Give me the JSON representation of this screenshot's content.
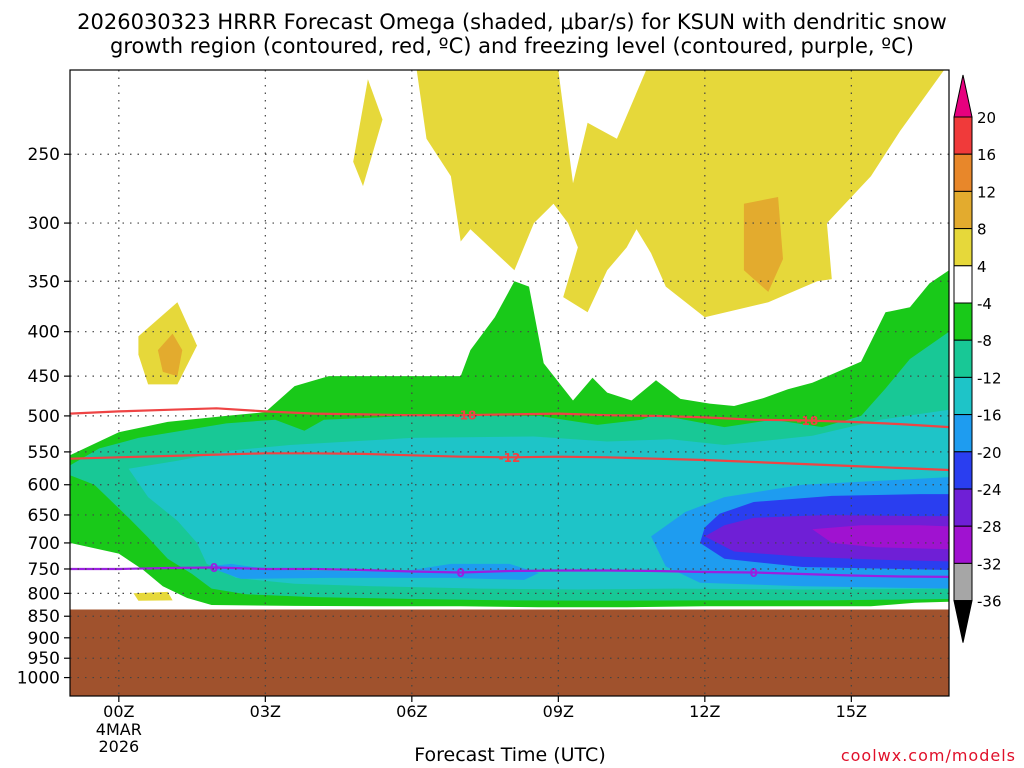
{
  "title_line1": "2026030323 HRRR Forecast Omega (shaded, μbar/s) for KSUN with dendritic snow",
  "title_line2": "growth region (contoured, red, ºC) and freezing level (contoured, purple, ºC)",
  "x_axis_title": "Forecast Time (UTC)",
  "credit": "coolwx.com/models",
  "chart_data": {
    "type": "heatmap",
    "x_ticks": [
      {
        "hour": 0,
        "label": "00Z"
      },
      {
        "hour": 3,
        "label": "03Z"
      },
      {
        "hour": 6,
        "label": "06Z"
      },
      {
        "hour": 9,
        "label": "09Z"
      },
      {
        "hour": 12,
        "label": "12Z"
      },
      {
        "hour": 15,
        "label": "15Z"
      }
    ],
    "x_date_lines": [
      "4MAR",
      "2026"
    ],
    "xlim_hours": [
      -1,
      17
    ],
    "y_pressure_range_mb": [
      1050,
      200
    ],
    "y_ticks_mb": [
      250,
      300,
      350,
      400,
      450,
      500,
      550,
      600,
      650,
      700,
      750,
      800,
      850,
      900,
      950,
      1000
    ],
    "grid": true,
    "surface_pressure_mb": 835,
    "colorbar": {
      "levels": [
        20,
        16,
        12,
        8,
        4,
        -4,
        -8,
        -12,
        -16,
        -20,
        -24,
        -28,
        -32,
        -36
      ],
      "bins": [
        {
          "lo": 20,
          "hi": null,
          "color": "#e6007e"
        },
        {
          "lo": 16,
          "hi": 20,
          "color": "#f03a3a"
        },
        {
          "lo": 12,
          "hi": 16,
          "color": "#e8872a"
        },
        {
          "lo": 8,
          "hi": 12,
          "color": "#e3ab2e"
        },
        {
          "lo": 4,
          "hi": 8,
          "color": "#e6d83a"
        },
        {
          "lo": -4,
          "hi": 4,
          "color": "#ffffff"
        },
        {
          "lo": -8,
          "hi": -4,
          "color": "#19c919"
        },
        {
          "lo": -12,
          "hi": -8,
          "color": "#18c896"
        },
        {
          "lo": -16,
          "hi": -12,
          "color": "#1ec4c8"
        },
        {
          "lo": -20,
          "hi": -16,
          "color": "#1e9cf0"
        },
        {
          "lo": -24,
          "hi": -20,
          "color": "#2a3ef0"
        },
        {
          "lo": -28,
          "hi": -24,
          "color": "#6f1fd6"
        },
        {
          "lo": -32,
          "hi": -28,
          "color": "#a012d0"
        },
        {
          "lo": -36,
          "hi": -32,
          "color": "#a6a6a6"
        },
        {
          "lo": null,
          "hi": -36,
          "color": "#000000"
        }
      ]
    },
    "omega_regions": [
      {
        "value": 6,
        "points": [
          [
            6.1,
            200
          ],
          [
            9.0,
            200
          ],
          [
            9.3,
            270
          ],
          [
            9.6,
            230
          ],
          [
            10.2,
            240
          ],
          [
            10.8,
            200
          ],
          [
            16.9,
            200
          ],
          [
            16.0,
            235
          ],
          [
            15.4,
            265
          ],
          [
            14.5,
            300
          ],
          [
            14.6,
            348
          ],
          [
            14.3,
            350
          ],
          [
            13.3,
            370
          ],
          [
            12.0,
            385
          ],
          [
            11.2,
            355
          ],
          [
            10.9,
            325
          ],
          [
            10.6,
            305
          ],
          [
            10.4,
            320
          ],
          [
            10.0,
            340
          ],
          [
            9.6,
            380
          ],
          [
            9.1,
            365
          ],
          [
            9.4,
            320
          ],
          [
            9.2,
            300
          ],
          [
            8.9,
            285
          ],
          [
            8.5,
            300
          ],
          [
            8.1,
            340
          ],
          [
            7.2,
            305
          ],
          [
            7.0,
            315
          ],
          [
            6.8,
            265
          ],
          [
            6.3,
            240
          ]
        ]
      },
      {
        "value": 5,
        "points": [
          [
            5.1,
            205
          ],
          [
            5.4,
            228
          ],
          [
            5.0,
            272
          ],
          [
            4.8,
            255
          ]
        ]
      },
      {
        "value": 5,
        "points": [
          [
            0.4,
            405
          ],
          [
            1.2,
            370
          ],
          [
            1.6,
            415
          ],
          [
            1.2,
            460
          ],
          [
            0.6,
            460
          ],
          [
            0.4,
            425
          ]
        ]
      },
      {
        "value": 5,
        "points": [
          [
            0.3,
            800
          ],
          [
            1.0,
            797
          ],
          [
            1.1,
            815
          ],
          [
            0.4,
            816
          ]
        ]
      },
      {
        "value": 10,
        "points": [
          [
            12.8,
            285
          ],
          [
            13.5,
            280
          ],
          [
            13.6,
            330
          ],
          [
            13.3,
            360
          ],
          [
            12.8,
            340
          ]
        ]
      },
      {
        "value": 10,
        "points": [
          [
            0.8,
            420
          ],
          [
            1.1,
            402
          ],
          [
            1.3,
            420
          ],
          [
            1.2,
            450
          ],
          [
            0.9,
            445
          ]
        ]
      },
      {
        "value": -6,
        "points": [
          [
            -1,
            555
          ],
          [
            0,
            522
          ],
          [
            1.0,
            508
          ],
          [
            2.2,
            500
          ],
          [
            3.0,
            495
          ],
          [
            3.6,
            462
          ],
          [
            4.3,
            450
          ],
          [
            6.2,
            450
          ],
          [
            7.0,
            450
          ],
          [
            7.2,
            420
          ],
          [
            7.7,
            385
          ],
          [
            8.1,
            350
          ],
          [
            8.4,
            355
          ],
          [
            8.7,
            435
          ],
          [
            9.3,
            480
          ],
          [
            9.7,
            452
          ],
          [
            10.0,
            470
          ],
          [
            10.5,
            480
          ],
          [
            11.0,
            455
          ],
          [
            11.5,
            478
          ],
          [
            12.1,
            484
          ],
          [
            12.6,
            487
          ],
          [
            13.2,
            477
          ],
          [
            13.7,
            466
          ],
          [
            14.2,
            458
          ],
          [
            15.2,
            433
          ],
          [
            15.6,
            390
          ],
          [
            15.7,
            380
          ],
          [
            16.2,
            375
          ],
          [
            16.6,
            352
          ],
          [
            17,
            340
          ],
          [
            17,
            818
          ],
          [
            16.3,
            820
          ],
          [
            15.4,
            828
          ],
          [
            14.5,
            828
          ],
          [
            13.3,
            828
          ],
          [
            12.0,
            828
          ],
          [
            10.4,
            830
          ],
          [
            8.6,
            830
          ],
          [
            7.0,
            828
          ],
          [
            5.3,
            828
          ],
          [
            3.6,
            827
          ],
          [
            1.9,
            825
          ],
          [
            1.4,
            810
          ],
          [
            0.9,
            785
          ],
          [
            0.5,
            752
          ],
          [
            0,
            720
          ],
          [
            -1,
            700
          ]
        ]
      },
      {
        "value": -10,
        "points": [
          [
            -1,
            570
          ],
          [
            -0.4,
            545
          ],
          [
            0.4,
            530
          ],
          [
            2.2,
            510
          ],
          [
            3.2,
            505
          ],
          [
            3.8,
            520
          ],
          [
            4.2,
            505
          ],
          [
            6.0,
            500
          ],
          [
            8.6,
            500
          ],
          [
            9.8,
            512
          ],
          [
            10.7,
            505
          ],
          [
            11.0,
            498
          ],
          [
            12.4,
            515
          ],
          [
            13.4,
            505
          ],
          [
            14.4,
            515
          ],
          [
            15.2,
            500
          ],
          [
            15.7,
            465
          ],
          [
            16.2,
            430
          ],
          [
            17,
            400
          ],
          [
            17,
            812
          ],
          [
            14.5,
            815
          ],
          [
            12.0,
            815
          ],
          [
            10.0,
            816
          ],
          [
            8.0,
            815
          ],
          [
            6.0,
            812
          ],
          [
            4.0,
            808
          ],
          [
            2.6,
            802
          ],
          [
            1.9,
            790
          ],
          [
            1.5,
            760
          ],
          [
            1.0,
            730
          ],
          [
            0.6,
            690
          ],
          [
            0.2,
            655
          ],
          [
            -0.5,
            600
          ],
          [
            -1,
            585
          ]
        ]
      },
      {
        "value": -14,
        "points": [
          [
            0.2,
            575
          ],
          [
            1.2,
            563
          ],
          [
            2.3,
            548
          ],
          [
            3.5,
            540
          ],
          [
            6.0,
            530
          ],
          [
            8.5,
            528
          ],
          [
            10.0,
            535
          ],
          [
            11.3,
            532
          ],
          [
            12.4,
            540
          ],
          [
            14.2,
            527
          ],
          [
            15.6,
            505
          ],
          [
            17,
            492
          ],
          [
            17,
            790
          ],
          [
            14.0,
            792
          ],
          [
            11.4,
            790
          ],
          [
            9.4,
            792
          ],
          [
            7.4,
            790
          ],
          [
            5.2,
            785
          ],
          [
            3.6,
            780
          ],
          [
            2.4,
            768
          ],
          [
            1.8,
            740
          ],
          [
            1.6,
            700
          ],
          [
            1.2,
            660
          ],
          [
            0.6,
            620
          ]
        ]
      },
      {
        "value": -18,
        "points": [
          [
            1.8,
            745
          ],
          [
            2.3,
            740
          ],
          [
            3.2,
            752
          ],
          [
            4.9,
            755
          ],
          [
            6.0,
            752
          ],
          [
            6.8,
            740
          ],
          [
            8.0,
            740
          ],
          [
            8.6,
            758
          ],
          [
            8.3,
            772
          ],
          [
            6.8,
            768
          ],
          [
            4.3,
            768
          ],
          [
            2.5,
            770
          ]
        ]
      },
      {
        "value": -18,
        "points": [
          [
            10.9,
            688
          ],
          [
            11.6,
            645
          ],
          [
            12.4,
            620
          ],
          [
            14.0,
            600
          ],
          [
            16.0,
            592
          ],
          [
            17,
            588
          ],
          [
            17,
            790
          ],
          [
            14.0,
            785
          ],
          [
            11.9,
            778
          ],
          [
            11.2,
            745
          ]
        ]
      },
      {
        "value": -22,
        "points": [
          [
            12.0,
            672
          ],
          [
            12.3,
            648
          ],
          [
            13.0,
            628
          ],
          [
            14.6,
            618
          ],
          [
            16.4,
            615
          ],
          [
            17,
            615
          ],
          [
            17,
            752
          ],
          [
            14.0,
            746
          ],
          [
            12.4,
            730
          ],
          [
            11.9,
            700
          ]
        ]
      },
      {
        "value": -26,
        "points": [
          [
            12.0,
            688
          ],
          [
            12.4,
            668
          ],
          [
            13.0,
            655
          ],
          [
            14.5,
            650
          ],
          [
            16.4,
            652
          ],
          [
            17,
            652
          ],
          [
            17,
            735
          ],
          [
            15.6,
            732
          ],
          [
            14.0,
            726
          ],
          [
            12.6,
            716
          ]
        ]
      },
      {
        "value": -30,
        "points": [
          [
            14.2,
            675
          ],
          [
            15.2,
            668
          ],
          [
            16.4,
            668
          ],
          [
            17,
            670
          ],
          [
            17,
            712
          ],
          [
            15.5,
            708
          ],
          [
            14.6,
            700
          ]
        ]
      }
    ],
    "contours": [
      {
        "name": "-18",
        "kind": "dgz",
        "color": "#ee4444",
        "label_at_hours": [
          7.1,
          14.1
        ],
        "points": [
          [
            -1,
            497
          ],
          [
            0,
            494
          ],
          [
            1,
            492
          ],
          [
            2,
            490
          ],
          [
            3,
            494
          ],
          [
            4,
            497
          ],
          [
            5,
            498
          ],
          [
            6,
            499
          ],
          [
            7,
            499
          ],
          [
            8,
            498
          ],
          [
            9,
            497
          ],
          [
            10,
            499
          ],
          [
            11,
            500
          ],
          [
            12,
            502
          ],
          [
            13,
            505
          ],
          [
            14,
            506
          ],
          [
            15,
            508
          ],
          [
            16,
            511
          ],
          [
            17,
            515
          ]
        ]
      },
      {
        "name": "-12",
        "kind": "dgz",
        "color": "#ee4444",
        "label_at_hours": [
          8.0
        ],
        "points": [
          [
            -1,
            560
          ],
          [
            0,
            558
          ],
          [
            1,
            556
          ],
          [
            2,
            554
          ],
          [
            3,
            552
          ],
          [
            4,
            552
          ],
          [
            5,
            553
          ],
          [
            6,
            555
          ],
          [
            7,
            557
          ],
          [
            8,
            558
          ],
          [
            9,
            557
          ],
          [
            10,
            558
          ],
          [
            11,
            560
          ],
          [
            12,
            562
          ],
          [
            13,
            565
          ],
          [
            14,
            568
          ],
          [
            15,
            571
          ],
          [
            16,
            574
          ],
          [
            17,
            577
          ]
        ]
      },
      {
        "name": "0",
        "kind": "freezing",
        "color": "#9a1fe0",
        "label_at_hours": [
          1.95,
          7.0,
          13.0
        ],
        "points": [
          [
            -1,
            750
          ],
          [
            0,
            750
          ],
          [
            1,
            748
          ],
          [
            2,
            747
          ],
          [
            3,
            750
          ],
          [
            4,
            750
          ],
          [
            5,
            752
          ],
          [
            6,
            755
          ],
          [
            7,
            757
          ],
          [
            8,
            754
          ],
          [
            9,
            753
          ],
          [
            10,
            753
          ],
          [
            11,
            754
          ],
          [
            12,
            756
          ],
          [
            13,
            757
          ],
          [
            14,
            760
          ],
          [
            15,
            763
          ],
          [
            16,
            765
          ],
          [
            17,
            766
          ]
        ]
      }
    ]
  }
}
